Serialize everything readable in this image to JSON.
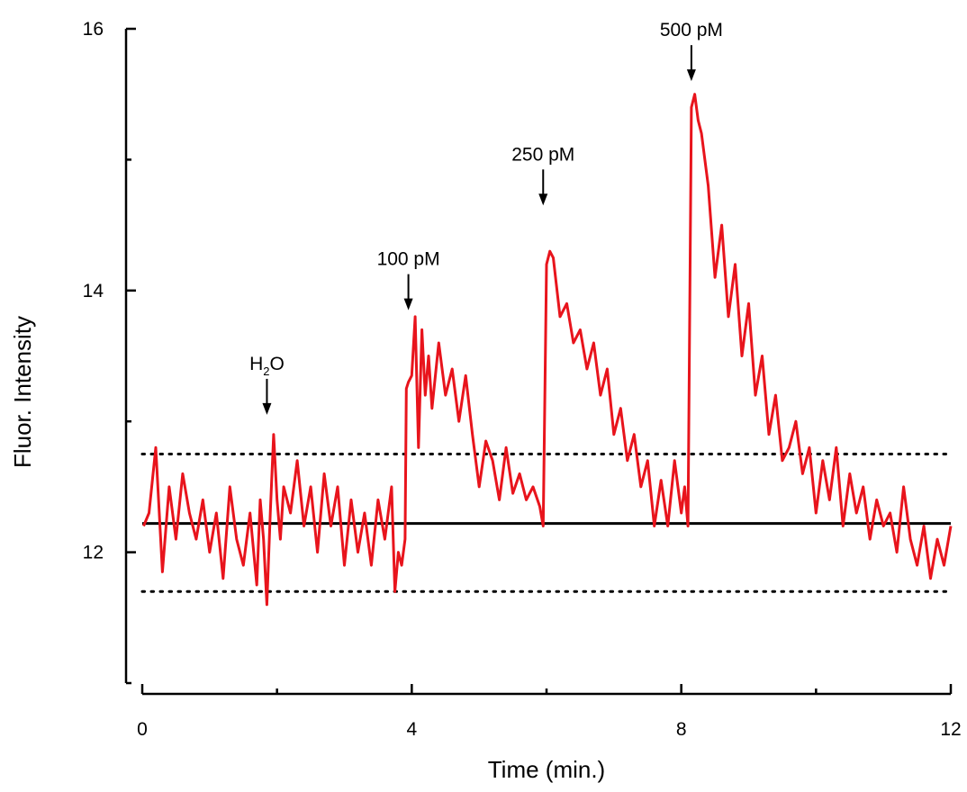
{
  "chart_data": {
    "type": "line",
    "xlabel": "Time (min.)",
    "ylabel": "Fluor. Intensity",
    "xlim": [
      0,
      12
    ],
    "ylim": [
      11,
      16
    ],
    "x_ticks": [
      0,
      4,
      8,
      12
    ],
    "x_tick_labels": [
      "0",
      "4",
      "8",
      "12"
    ],
    "x_minor_ticks": [
      2,
      6,
      10
    ],
    "y_ticks": [
      12,
      14,
      16
    ],
    "y_tick_labels": [
      "12",
      "14",
      "16"
    ],
    "y_minor_ticks": [
      11,
      13,
      15
    ],
    "grid": false,
    "series_color": "#e8141c",
    "reference_lines": [
      {
        "style": "solid",
        "y": 12.22
      },
      {
        "style": "dotted",
        "y": 12.75
      },
      {
        "style": "dotted",
        "y": 11.7
      }
    ],
    "annotations": [
      {
        "label": "H",
        "sub": "2",
        "tail": "O",
        "x": 1.85,
        "y_tip": 13.05
      },
      {
        "label": "100 pM",
        "x": 3.95,
        "y_tip": 13.85
      },
      {
        "label": "250 pM",
        "x": 5.95,
        "y_tip": 14.65
      },
      {
        "label": "500 pM",
        "x": 8.15,
        "y_tip": 15.6
      }
    ],
    "series": [
      {
        "x": [
          0.02,
          0.1,
          0.2,
          0.3,
          0.4,
          0.5,
          0.6,
          0.7,
          0.8,
          0.9,
          1.0,
          1.1,
          1.2,
          1.3,
          1.4,
          1.5,
          1.6,
          1.7,
          1.75,
          1.8,
          1.85,
          1.9,
          1.95,
          2.0,
          2.05,
          2.1,
          2.2,
          2.3,
          2.4,
          2.5,
          2.6,
          2.7,
          2.8,
          2.9,
          3.0,
          3.1,
          3.2,
          3.3,
          3.4,
          3.5,
          3.6,
          3.7,
          3.75,
          3.8,
          3.85,
          3.9,
          3.92,
          3.95,
          4.0,
          4.05,
          4.1,
          4.15,
          4.2,
          4.25,
          4.3,
          4.4,
          4.5,
          4.6,
          4.7,
          4.8,
          4.9,
          5.0,
          5.1,
          5.2,
          5.3,
          5.4,
          5.5,
          5.6,
          5.7,
          5.8,
          5.9,
          5.95,
          6.0,
          6.05,
          6.1,
          6.2,
          6.3,
          6.4,
          6.5,
          6.6,
          6.7,
          6.8,
          6.9,
          7.0,
          7.1,
          7.2,
          7.3,
          7.4,
          7.5,
          7.6,
          7.7,
          7.8,
          7.9,
          8.0,
          8.05,
          8.1,
          8.15,
          8.2,
          8.25,
          8.3,
          8.4,
          8.5,
          8.6,
          8.7,
          8.8,
          8.9,
          9.0,
          9.1,
          9.2,
          9.3,
          9.4,
          9.5,
          9.6,
          9.7,
          9.8,
          9.9,
          10.0,
          10.1,
          10.2,
          10.3,
          10.4,
          10.5,
          10.6,
          10.7,
          10.8,
          10.9,
          11.0,
          11.1,
          11.2,
          11.3,
          11.4,
          11.5,
          11.6,
          11.7,
          11.8,
          11.9,
          12.0
        ],
        "y": [
          12.2,
          12.3,
          12.8,
          11.85,
          12.5,
          12.1,
          12.6,
          12.3,
          12.1,
          12.4,
          12.0,
          12.3,
          11.8,
          12.5,
          12.1,
          11.9,
          12.3,
          11.75,
          12.4,
          12.1,
          11.6,
          12.3,
          12.9,
          12.4,
          12.1,
          12.5,
          12.3,
          12.7,
          12.2,
          12.5,
          12.0,
          12.6,
          12.2,
          12.5,
          11.9,
          12.4,
          12.0,
          12.3,
          11.9,
          12.4,
          12.1,
          12.5,
          11.7,
          12.0,
          11.9,
          12.1,
          13.25,
          13.3,
          13.35,
          13.8,
          12.8,
          13.7,
          13.2,
          13.5,
          13.1,
          13.6,
          13.2,
          13.4,
          13.0,
          13.35,
          12.9,
          12.5,
          12.85,
          12.7,
          12.4,
          12.8,
          12.45,
          12.6,
          12.4,
          12.5,
          12.35,
          12.2,
          14.2,
          14.3,
          14.25,
          13.8,
          13.9,
          13.6,
          13.7,
          13.4,
          13.6,
          13.2,
          13.4,
          12.9,
          13.1,
          12.7,
          12.9,
          12.5,
          12.7,
          12.2,
          12.55,
          12.2,
          12.7,
          12.3,
          12.5,
          12.2,
          15.4,
          15.5,
          15.3,
          15.2,
          14.8,
          14.1,
          14.5,
          13.8,
          14.2,
          13.5,
          13.9,
          13.2,
          13.5,
          12.9,
          13.2,
          12.7,
          12.8,
          13.0,
          12.6,
          12.8,
          12.3,
          12.7,
          12.4,
          12.8,
          12.2,
          12.6,
          12.3,
          12.5,
          12.1,
          12.4,
          12.2,
          12.3,
          12.0,
          12.5,
          12.1,
          11.9,
          12.2,
          11.8,
          12.1,
          11.9,
          12.2
        ]
      }
    ]
  }
}
